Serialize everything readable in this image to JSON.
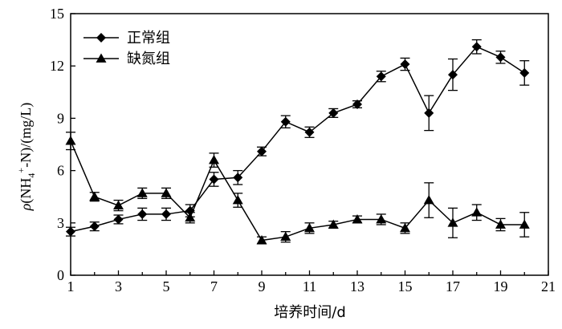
{
  "chart_data": {
    "type": "line",
    "xlabel": "培养时间/d",
    "ylabel": {
      "rho": "ρ",
      "open": "(NH",
      "sub": "4",
      "sup": "+",
      "close": "-N)/(mg/L)"
    },
    "xlim": [
      1,
      21
    ],
    "ylim": [
      0,
      15
    ],
    "xticks": [
      1,
      3,
      5,
      7,
      9,
      11,
      13,
      15,
      17,
      19,
      21
    ],
    "yticks": [
      0,
      3,
      6,
      9,
      12,
      15
    ],
    "legend_position": "top-left",
    "grid": false,
    "x": [
      1,
      2,
      3,
      4,
      5,
      6,
      7,
      8,
      9,
      10,
      11,
      12,
      13,
      14,
      15,
      16,
      17,
      18,
      19,
      20
    ],
    "series": [
      {
        "name": "正常组",
        "marker": "diamond",
        "values": [
          2.5,
          2.8,
          3.2,
          3.5,
          3.5,
          3.7,
          5.5,
          5.6,
          7.1,
          8.8,
          8.2,
          9.3,
          9.8,
          11.4,
          12.1,
          9.3,
          11.5,
          13.1,
          12.5,
          11.6
        ],
        "errors": [
          0.25,
          0.25,
          0.25,
          0.35,
          0.35,
          0.35,
          0.4,
          0.4,
          0.25,
          0.35,
          0.3,
          0.25,
          0.2,
          0.3,
          0.35,
          1.0,
          0.9,
          0.4,
          0.35,
          0.7
        ]
      },
      {
        "name": "缺氮组",
        "marker": "triangle",
        "values": [
          7.7,
          4.5,
          4.0,
          4.7,
          4.7,
          3.3,
          6.6,
          4.3,
          2.0,
          2.2,
          2.7,
          2.9,
          3.2,
          3.2,
          2.7,
          4.3,
          3.0,
          3.6,
          2.9,
          2.9
        ],
        "errors": [
          0.5,
          0.25,
          0.3,
          0.3,
          0.3,
          0.3,
          0.4,
          0.4,
          0.2,
          0.3,
          0.3,
          0.2,
          0.2,
          0.3,
          0.3,
          1.0,
          0.85,
          0.45,
          0.35,
          0.7
        ]
      }
    ]
  }
}
